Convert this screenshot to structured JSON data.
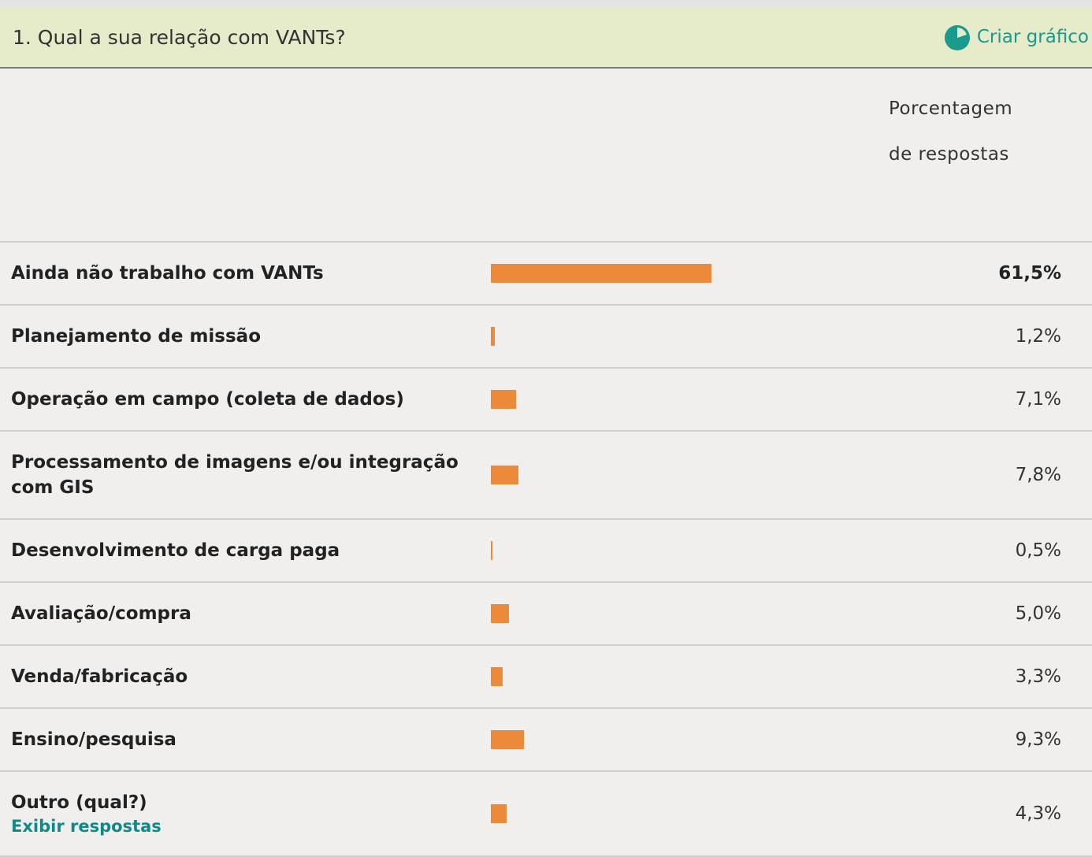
{
  "question": "1. Qual a sua relação com VANTs?",
  "action": "Criar gráfico",
  "column_header": "Porcentagem de respostas",
  "bar_color": "#ec8a3a",
  "rows": [
    {
      "label": "Ainda não trabalho com VANTs",
      "value": 61.5,
      "value_label": "61,5%",
      "bold": true
    },
    {
      "label": "Planejamento de missão",
      "value": 1.2,
      "value_label": "1,2%"
    },
    {
      "label": "Operação em campo (coleta de dados)",
      "value": 7.1,
      "value_label": "7,1%"
    },
    {
      "label": "Processamento de imagens e/ou integração com GIS",
      "value": 7.8,
      "value_label": "7,8%"
    },
    {
      "label": "Desenvolvimento de carga paga",
      "value": 0.5,
      "value_label": "0,5%"
    },
    {
      "label": "Avaliação/compra",
      "value": 5.0,
      "value_label": "5,0%"
    },
    {
      "label": "Venda/fabricação",
      "value": 3.3,
      "value_label": "3,3%"
    },
    {
      "label": "Ensino/pesquisa",
      "value": 9.3,
      "value_label": "9,3%"
    },
    {
      "label": "Outro (qual?)",
      "value": 4.3,
      "value_label": "4,3%",
      "link": "Exibir respostas"
    }
  ]
}
